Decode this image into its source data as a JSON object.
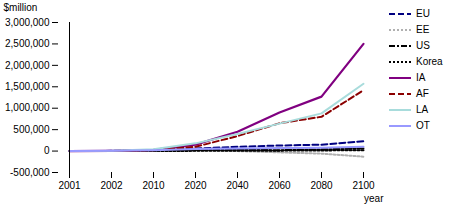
{
  "chart_data": {
    "type": "line",
    "y_label": "$million",
    "x_label": "year",
    "categories": [
      "2001",
      "2002",
      "2010",
      "2020",
      "2040",
      "2060",
      "2080",
      "2100"
    ],
    "ylim": [
      -500000,
      3000000
    ],
    "yticks": [
      {
        "value": -500000,
        "label": "-500,000"
      },
      0,
      {
        "value": 500000,
        "label": "500,000"
      },
      {
        "value": 1000000,
        "label": "1,000,000"
      },
      {
        "value": 1500000,
        "label": "1,500,000"
      },
      {
        "value": 2000000,
        "label": "2,000,000"
      },
      {
        "value": 2500000,
        "label": "2,500,000"
      },
      {
        "value": 3000000,
        "label": "3,000,000"
      }
    ],
    "grid": false,
    "legend": "right",
    "series": [
      {
        "name": "EU",
        "color": "#000080",
        "line_style": "dashed",
        "values": [
          0,
          5000,
          20000,
          60000,
          100000,
          130000,
          150000,
          230000
        ]
      },
      {
        "name": "EE",
        "color": "#b0b0b0",
        "line_style": "dotted",
        "values": [
          0,
          2000,
          10000,
          30000,
          0,
          -30000,
          -60000,
          -130000
        ]
      },
      {
        "name": "US",
        "color": "#000000",
        "line_style": "dashdot",
        "values": [
          0,
          3000,
          10000,
          20000,
          30000,
          20000,
          40000,
          60000
        ]
      },
      {
        "name": "Korea",
        "color": "#000000",
        "line_style": "dotted",
        "values": [
          0,
          1000,
          2000,
          5000,
          10000,
          10000,
          15000,
          20000
        ]
      },
      {
        "name": "IA",
        "color": "#800080",
        "line_style": "solid",
        "values": [
          0,
          5000,
          30000,
          150000,
          450000,
          900000,
          1270000,
          2500000
        ]
      },
      {
        "name": "AF",
        "color": "#8b0000",
        "line_style": "dashed",
        "values": [
          0,
          3000,
          20000,
          100000,
          350000,
          650000,
          800000,
          1420000
        ]
      },
      {
        "name": "LA",
        "color": "#a8dcdc",
        "line_style": "solid",
        "values": [
          0,
          5000,
          40000,
          180000,
          400000,
          640000,
          880000,
          1570000
        ]
      },
      {
        "name": "OT",
        "color": "#9999ff",
        "line_style": "solid",
        "values": [
          0,
          5000,
          20000,
          50000,
          60000,
          70000,
          80000,
          100000
        ]
      }
    ]
  }
}
